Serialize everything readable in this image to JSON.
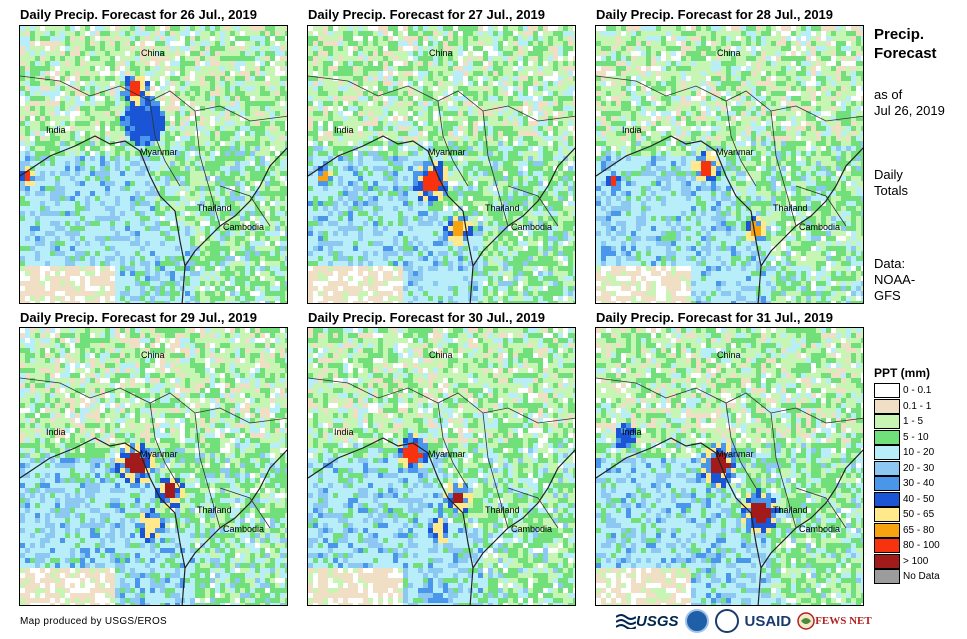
{
  "panels": [
    {
      "title": "Daily Precip. Forecast for 26 Jul., 2019"
    },
    {
      "title": "Daily Precip. Forecast for 27 Jul., 2019"
    },
    {
      "title": "Daily Precip. Forecast for 28 Jul., 2019"
    },
    {
      "title": "Daily Precip. Forecast for 29 Jul., 2019"
    },
    {
      "title": "Daily Precip. Forecast for 30 Jul., 2019"
    },
    {
      "title": "Daily Precip. Forecast for 31 Jul., 2019"
    }
  ],
  "map_labels": {
    "china": "China",
    "india": "India",
    "myanmar": "Myanmar",
    "thailand": "Thailand",
    "cambodia": "Cambodia"
  },
  "side": {
    "title_line1": "Precip.",
    "title_line2": "Forecast",
    "asof_line1": "as of",
    "asof_line2": "Jul 26, 2019",
    "daily_line1": "Daily",
    "daily_line2": "Totals",
    "data_line1": "Data:",
    "data_line2": "NOAA-",
    "data_line3": "GFS"
  },
  "legend": {
    "title": "PPT (mm)",
    "items": [
      {
        "label": "0 - 0.1",
        "color": "#ffffff"
      },
      {
        "label": "0.1 - 1",
        "color": "#f0dfc4"
      },
      {
        "label": "1 - 5",
        "color": "#c6f5b4"
      },
      {
        "label": "5 - 10",
        "color": "#72e07a"
      },
      {
        "label": "10 - 20",
        "color": "#b8eefa"
      },
      {
        "label": "20 - 30",
        "color": "#8cc8f2"
      },
      {
        "label": "30 - 40",
        "color": "#4a96ea"
      },
      {
        "label": "40 - 50",
        "color": "#1a55d6"
      },
      {
        "label": "50 - 65",
        "color": "#ffe98a"
      },
      {
        "label": "65 - 80",
        "color": "#f7a20f"
      },
      {
        "label": "80 - 100",
        "color": "#f7330f"
      },
      {
        "label": "> 100",
        "color": "#a31a1a"
      },
      {
        "label": "No Data",
        "color": "#9c9c9c"
      }
    ]
  },
  "credit": "Map produced by USGS/EROS",
  "logos": {
    "usgs": "USGS",
    "usaid": "USAID",
    "fews": "FEWS NET"
  }
}
